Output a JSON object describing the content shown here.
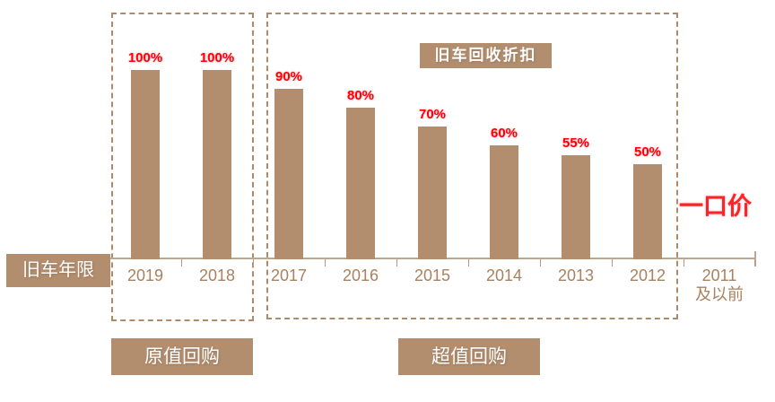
{
  "title_box": {
    "text": "旧车回收折扣"
  },
  "axis_label_box": {
    "text": "旧车年限"
  },
  "fixed_price": {
    "text": "一口价"
  },
  "group_labels": {
    "left": "原值回购",
    "right": "超值回购"
  },
  "colors": {
    "bar": "#b28e6f",
    "box_fill": "#b28e6f",
    "dashed_border": "#ad8a68",
    "axis": "#bfa78e",
    "category_text": "#a8825f",
    "value_label": "#ff0000",
    "fixed_price_text": "#fb2525",
    "box_text": "#ffffff"
  },
  "chart_data": {
    "type": "bar",
    "title": "旧车回收折扣",
    "xlabel": "旧车年限",
    "ylabel": "",
    "categories": [
      "2019",
      "2018",
      "2017",
      "2016",
      "2015",
      "2014",
      "2013",
      "2012",
      "2011\n及以前"
    ],
    "values": [
      100,
      100,
      90,
      80,
      70,
      60,
      55,
      50,
      null
    ],
    "value_labels": [
      "100%",
      "100%",
      "90%",
      "80%",
      "70%",
      "60%",
      "55%",
      "50%",
      ""
    ],
    "ylim": [
      0,
      100
    ],
    "grid": false,
    "legend": false,
    "bar_color": "#b28e6f",
    "value_label_color": "#ff0000",
    "groups": [
      {
        "label": "原值回购",
        "categories": [
          "2019",
          "2018"
        ]
      },
      {
        "label": "超值回购",
        "categories": [
          "2017",
          "2016",
          "2015",
          "2014",
          "2013",
          "2012"
        ]
      }
    ],
    "annotations": [
      "一口价"
    ]
  }
}
